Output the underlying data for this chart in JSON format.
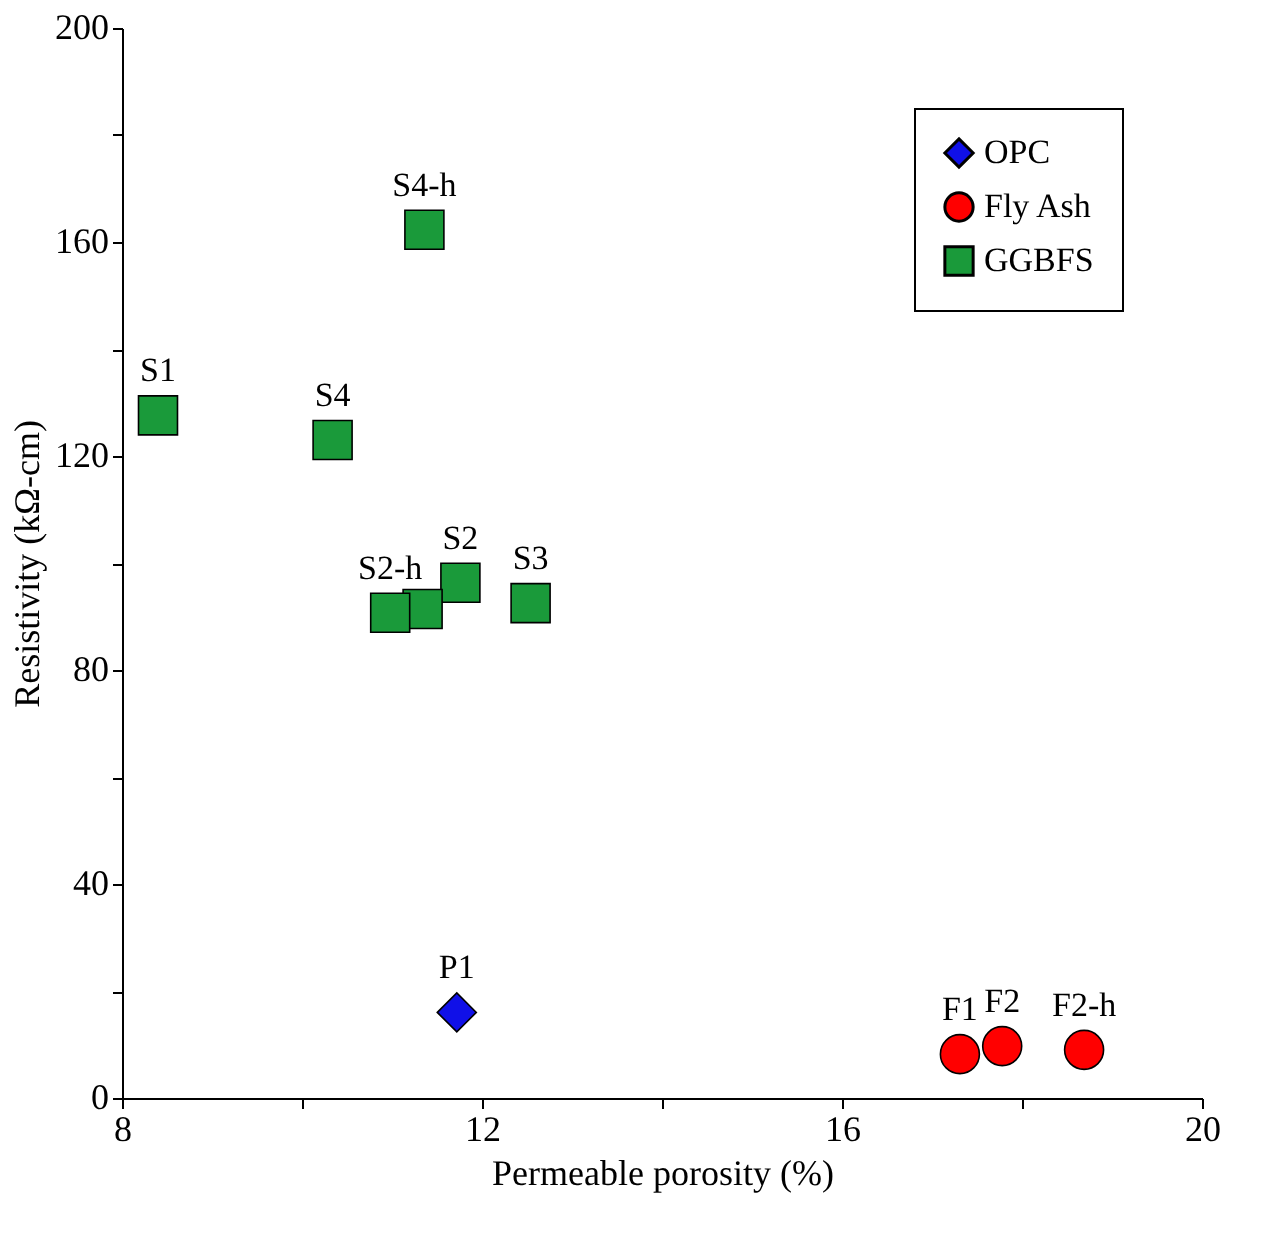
{
  "chart_data": {
    "type": "scatter",
    "xlabel": "Permeable porosity (%)",
    "ylabel": "Resistivity (kΩ-cm)",
    "xlim": [
      8,
      20
    ],
    "xticks": [
      8,
      {
        "value": 10,
        "label": null
      },
      12,
      {
        "value": 14,
        "label": null
      },
      16,
      {
        "value": 18,
        "label": null
      },
      20
    ],
    "ylim": [
      0,
      200
    ],
    "yticks": [
      0,
      {
        "value": 20,
        "label": null
      },
      40,
      {
        "value": 60,
        "label": null
      },
      80,
      {
        "value": 100,
        "label": null
      },
      120,
      {
        "value": 140,
        "label": null
      },
      160,
      {
        "value": 180,
        "label": null
      },
      200
    ],
    "grid": false,
    "legend": "top right",
    "series": [
      {
        "name": "OPC",
        "color": "#1010e8",
        "marker": "diamond",
        "x": [
          11.72
        ],
        "values": [
          16
        ]
      },
      {
        "name": "Fly Ash",
        "color": "#ff0000",
        "marker": "circle",
        "x": [
          17.31,
          17.78,
          18.69
        ],
        "values": [
          8.2,
          9.7,
          9
        ]
      },
      {
        "name": "GGBFS",
        "color": "#1a9a3a",
        "marker": "square",
        "x": [
          8.4,
          10.34,
          11.36,
          11.76,
          11.34,
          10.98,
          12.54
        ],
        "values": [
          127.6,
          123,
          162.3,
          96.3,
          91.4,
          90.7,
          92.5
        ]
      }
    ],
    "annotations": [
      {
        "text": "P1",
        "x": 11.72,
        "y": 16
      },
      {
        "text": "F1",
        "x": 17.31,
        "y": 8.2
      },
      {
        "text": "F2",
        "x": 17.78,
        "y": 9.7
      },
      {
        "text": "F2-h",
        "x": 18.69,
        "y": 9
      },
      {
        "text": "S1",
        "x": 8.4,
        "y": 127.6
      },
      {
        "text": "S4",
        "x": 10.34,
        "y": 123
      },
      {
        "text": "S4-h",
        "x": 11.36,
        "y": 162.3
      },
      {
        "text": "S2",
        "x": 11.76,
        "y": 96.3
      },
      {
        "text": "S2-h",
        "x": 10.98,
        "y": 90.7
      },
      {
        "text": "S3",
        "x": 12.54,
        "y": 92.5
      }
    ]
  }
}
